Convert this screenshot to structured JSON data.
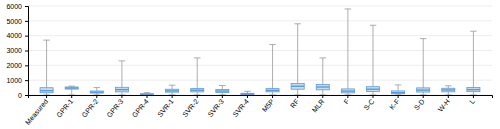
{
  "chart_data": {
    "type": "box",
    "categories": [
      "Measured",
      "GPR-1",
      "GPR-2",
      "GPR-3",
      "GPR-4",
      "SVR-1",
      "SVR-2",
      "SVR-3",
      "SVR-4",
      "M5P",
      "RF",
      "MLR",
      "F",
      "S-C",
      "K-F",
      "S-D",
      "W-H",
      "L"
    ],
    "boxes": [
      {
        "whislo": 5,
        "q1": 150,
        "med": 290,
        "q3": 490,
        "whishi": 3700
      },
      {
        "whislo": 5,
        "q1": 400,
        "med": 470,
        "q3": 540,
        "whishi": 600
      },
      {
        "whislo": 5,
        "q1": 130,
        "med": 190,
        "q3": 270,
        "whishi": 500
      },
      {
        "whislo": 5,
        "q1": 210,
        "med": 360,
        "q3": 520,
        "whishi": 2300
      },
      {
        "whislo": 5,
        "q1": 20,
        "med": 45,
        "q3": 80,
        "whishi": 160
      },
      {
        "whislo": 5,
        "q1": 190,
        "med": 280,
        "q3": 390,
        "whishi": 660
      },
      {
        "whislo": 5,
        "q1": 210,
        "med": 320,
        "q3": 430,
        "whishi": 2500
      },
      {
        "whislo": 5,
        "q1": 175,
        "med": 265,
        "q3": 370,
        "whishi": 640
      },
      {
        "whislo": 5,
        "q1": 25,
        "med": 65,
        "q3": 115,
        "whishi": 250
      },
      {
        "whislo": 5,
        "q1": 215,
        "med": 310,
        "q3": 430,
        "whishi": 3400
      },
      {
        "whislo": 5,
        "q1": 390,
        "med": 590,
        "q3": 780,
        "whishi": 4800
      },
      {
        "whislo": 5,
        "q1": 350,
        "med": 540,
        "q3": 710,
        "whishi": 2500
      },
      {
        "whislo": 5,
        "q1": 140,
        "med": 260,
        "q3": 410,
        "whishi": 5800
      },
      {
        "whislo": 5,
        "q1": 240,
        "med": 390,
        "q3": 560,
        "whishi": 4700
      },
      {
        "whislo": 5,
        "q1": 85,
        "med": 155,
        "q3": 275,
        "whishi": 680
      },
      {
        "whislo": 5,
        "q1": 200,
        "med": 330,
        "q3": 480,
        "whishi": 3800
      },
      {
        "whislo": 5,
        "q1": 215,
        "med": 340,
        "q3": 455,
        "whishi": 620
      },
      {
        "whislo": 5,
        "q1": 225,
        "med": 360,
        "q3": 510,
        "whishi": 4300
      }
    ],
    "color": "#5b9bd5",
    "ylim": [
      0,
      6000
    ],
    "yticks": [
      0,
      1000,
      2000,
      3000,
      4000,
      5000,
      6000
    ],
    "grid": true
  }
}
